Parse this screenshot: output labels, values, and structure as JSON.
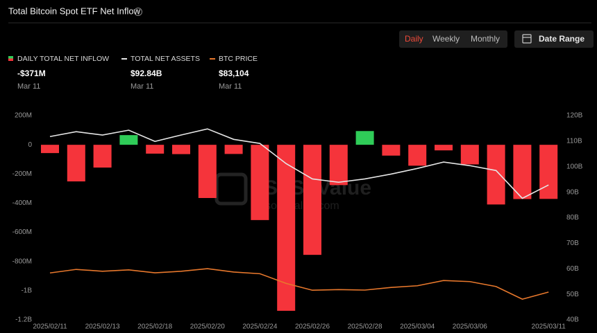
{
  "chart_data": {
    "type": "bar",
    "title": "Total Bitcoin Spot ETF Net Inflow",
    "controls": {
      "intervals": [
        "Daily",
        "Weekly",
        "Monthly"
      ],
      "selected": "Daily",
      "date_range": "Date Range"
    },
    "watermark": {
      "brand": "SoSoValue",
      "site": "sosovalue.com"
    },
    "readout_date": "Mar 11",
    "categories": [
      "2025/02/11",
      null,
      "2025/02/13",
      null,
      "2025/02/18",
      null,
      "2025/02/20",
      null,
      "2025/02/24",
      null,
      "2025/02/26",
      null,
      "2025/02/28",
      null,
      "2025/03/04",
      null,
      "2025/03/06",
      null,
      null,
      "2025/03/11"
    ],
    "series": [
      {
        "name": "DAILY TOTAL NET INFLOW",
        "type": "bar",
        "axis": "y",
        "color": "#f5343b",
        "positive_color": "#2fcc58",
        "values": [
          -56.8,
          -251,
          -156.1,
          66.4,
          -60.6,
          -64,
          -364.8,
          -62.9,
          -516,
          -1138,
          -754.5,
          -276.2,
          94.3,
          -74.2,
          -143.4,
          -38.3,
          -134.3,
          -409.2,
          -372,
          -371
        ],
        "value_labels": [
          null,
          null,
          null,
          null,
          null,
          null,
          null,
          null,
          null,
          null,
          null,
          null,
          null,
          null,
          null,
          null,
          null,
          null,
          null,
          "-$371M"
        ]
      },
      {
        "name": "TOTAL NET ASSETS",
        "type": "line",
        "axis": "y2",
        "color": "#e6e6e6",
        "values": [
          111.8,
          113.7,
          112.4,
          114.3,
          109.9,
          112.4,
          114.8,
          110.7,
          109.1,
          101.2,
          95.2,
          93.9,
          95.2,
          97.1,
          99.3,
          101.8,
          100.4,
          98.5,
          87.6,
          92.84
        ],
        "value_labels": [
          null,
          null,
          null,
          null,
          null,
          null,
          null,
          null,
          null,
          null,
          null,
          null,
          null,
          null,
          null,
          null,
          null,
          null,
          null,
          "$92.84B"
        ]
      },
      {
        "name": "BTC PRICE",
        "type": "line",
        "axis": "y3",
        "color": "#e8782c",
        "values": [
          95500,
          97800,
          96600,
          97500,
          95600,
          96600,
          98300,
          96100,
          95000,
          88700,
          84300,
          84700,
          84400,
          86100,
          87200,
          90600,
          89900,
          86700,
          78500,
          83104
        ],
        "value_labels": [
          null,
          null,
          null,
          null,
          null,
          null,
          null,
          null,
          null,
          null,
          null,
          null,
          null,
          null,
          null,
          null,
          null,
          null,
          null,
          "$83,104"
        ]
      }
    ],
    "ylim": [
      -1200,
      200
    ],
    "yticks": [
      {
        "value": 200,
        "label": "200M"
      },
      0,
      {
        "value": -200,
        "label": "-200M"
      },
      {
        "value": -400,
        "label": "-400M"
      },
      {
        "value": -600,
        "label": "-600M"
      },
      {
        "value": -800,
        "label": "-800M"
      },
      {
        "value": -1000,
        "label": "-1B"
      },
      {
        "value": -1200,
        "label": "-1.2B"
      }
    ],
    "y2lim": [
      40,
      120
    ],
    "y2ticks": [
      {
        "value": 120,
        "label": "120B"
      },
      {
        "value": 110,
        "label": "110B"
      },
      {
        "value": 100,
        "label": "100B"
      },
      {
        "value": 90,
        "label": "90B"
      },
      {
        "value": 80,
        "label": "80B"
      },
      {
        "value": 70,
        "label": "70B"
      },
      {
        "value": 60,
        "label": "60B"
      },
      {
        "value": 50,
        "label": "50B"
      },
      {
        "value": 40,
        "label": "40B"
      }
    ],
    "y3lim": [
      65100,
      197500
    ]
  }
}
